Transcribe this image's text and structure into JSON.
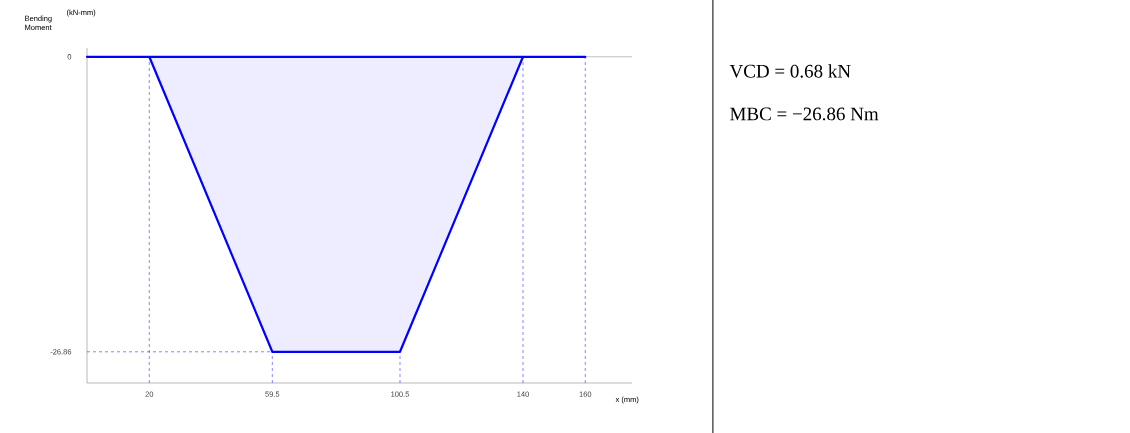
{
  "chart_data": {
    "type": "area",
    "ylabel": "Bending Moment",
    "xlabel": "x (mm)",
    "x": [
      0,
      20,
      59.5,
      100.5,
      140,
      160
    ],
    "values": [
      0,
      0,
      -26.86,
      -26.86,
      0,
      0
    ],
    "color": "#0000ff",
    "xlim": [
      0,
      175
    ],
    "ylim": [
      -29.7,
      0.8
    ],
    "xticks": [
      20,
      59.5,
      100.5,
      140,
      160
    ],
    "yticks": [
      0,
      -26.86
    ],
    "ref_lines": [
      {
        "axis": "y",
        "value": 0,
        "color": "#999999",
        "line_style": "solid"
      },
      {
        "axis": "x",
        "value": 20,
        "color": "#3333ff",
        "line_style": "dashed"
      },
      {
        "axis": "x",
        "value": 59.5,
        "color": "#3333ff",
        "line_style": "dashed"
      },
      {
        "axis": "x",
        "value": 100.5,
        "color": "#3333ff",
        "line_style": "dashed"
      },
      {
        "axis": "x",
        "value": 140,
        "color": "#3333ff",
        "line_style": "dashed"
      },
      {
        "axis": "x",
        "value": 160,
        "color": "#3333ff",
        "line_style": "dashed"
      },
      {
        "axis": "y",
        "value": -26.86,
        "color": "#3333ff",
        "line_style": "dashed"
      }
    ],
    "annotations": [
      "(kN-mm)",
      "VCD = 0.68 kN",
      "MBC = −26.86 Nm"
    ],
    "grid": false
  }
}
